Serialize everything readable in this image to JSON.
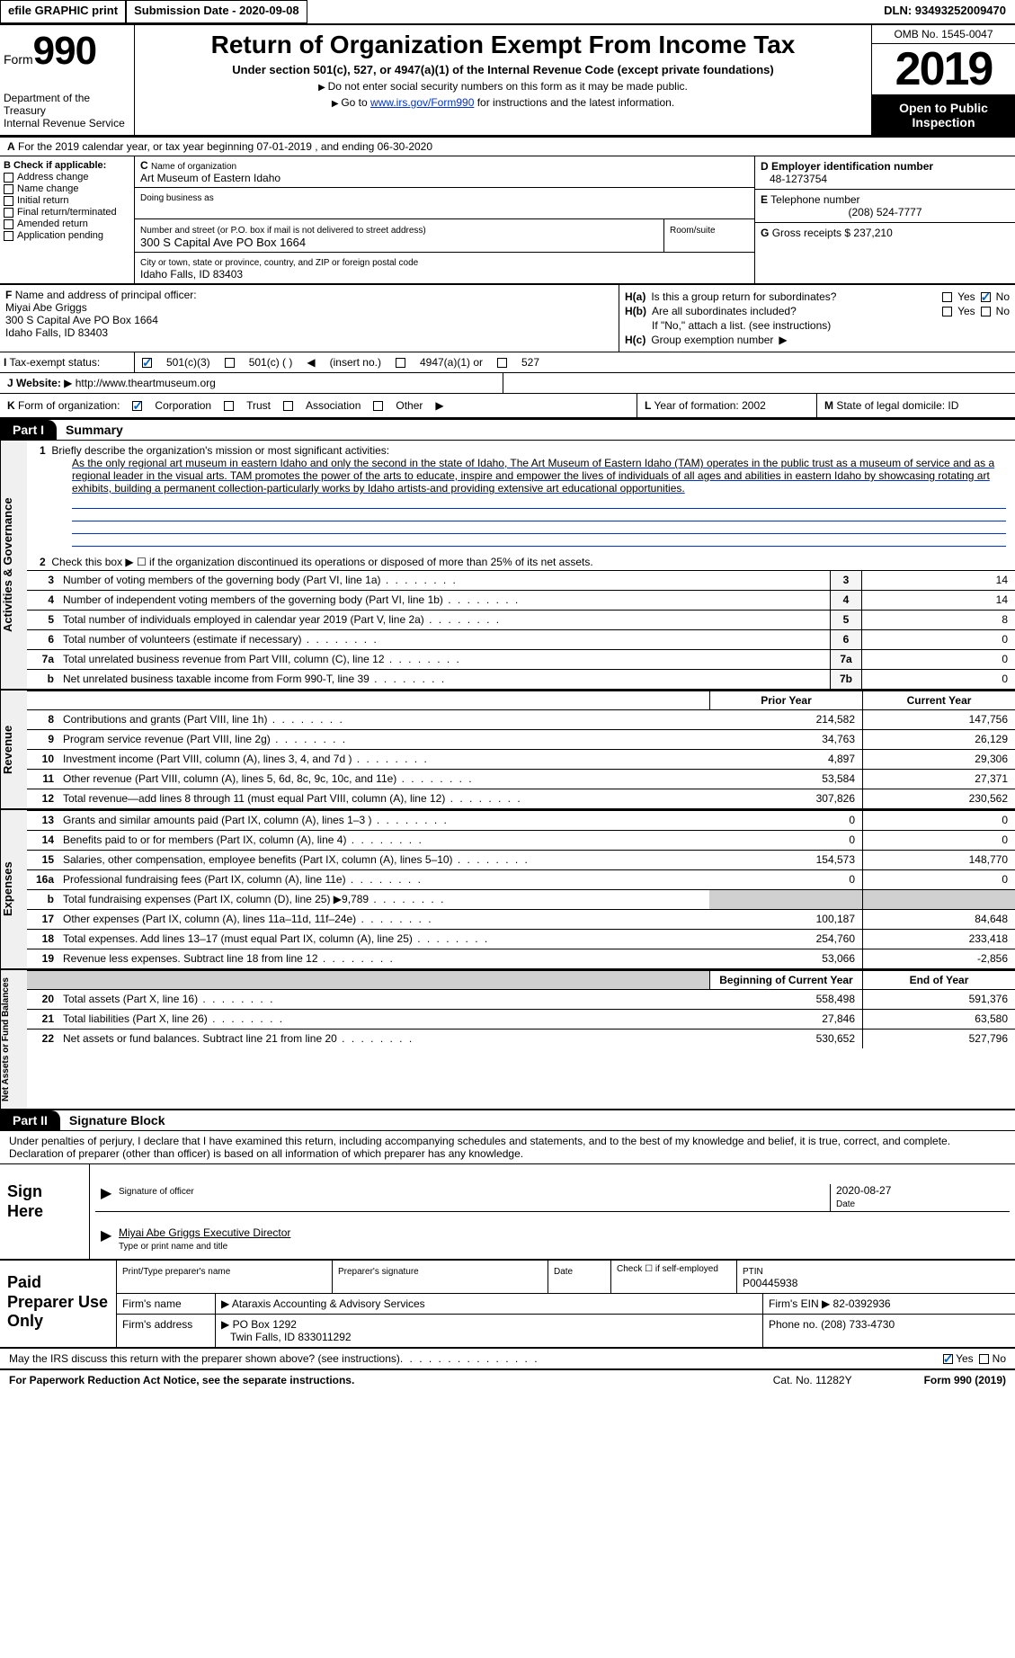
{
  "topbar": {
    "efile": "efile GRAPHIC print",
    "submission_label": "Submission Date - 2020-09-08",
    "dln": "DLN: 93493252009470"
  },
  "header": {
    "form_label": "Form",
    "form_num": "990",
    "dept": "Department of the Treasury",
    "irs": "Internal Revenue Service",
    "title": "Return of Organization Exempt From Income Tax",
    "subtitle": "Under section 501(c), 527, or 4947(a)(1) of the Internal Revenue Code (except private foundations)",
    "note1": "Do not enter social security numbers on this form as it may be made public.",
    "note2_pre": "Go to ",
    "note2_link": "www.irs.gov/Form990",
    "note2_post": " for instructions and the latest information.",
    "omb": "OMB No. 1545-0047",
    "year": "2019",
    "inspect": "Open to Public Inspection"
  },
  "rowA": "For the 2019 calendar year, or tax year beginning 07-01-2019   , and ending 06-30-2020",
  "boxB": {
    "label": "Check if applicable:",
    "items": [
      "Address change",
      "Name change",
      "Initial return",
      "Final return/terminated",
      "Amended return",
      "Application pending"
    ]
  },
  "boxC": {
    "label": "Name of organization",
    "name": "Art Museum of Eastern Idaho",
    "dba_label": "Doing business as",
    "addr_label": "Number and street (or P.O. box if mail is not delivered to street address)",
    "room_label": "Room/suite",
    "addr": "300 S Capital Ave PO Box 1664",
    "city_label": "City or town, state or province, country, and ZIP or foreign postal code",
    "city": "Idaho Falls, ID  83403"
  },
  "boxD": {
    "label": "Employer identification number",
    "val": "48-1273754"
  },
  "boxE": {
    "label": "Telephone number",
    "val": "(208) 524-7777"
  },
  "boxG": {
    "label": "Gross receipts $",
    "val": "237,210"
  },
  "boxF": {
    "label": "Name and address of principal officer:",
    "name": "Miyai Abe Griggs",
    "addr1": "300 S Capital Ave PO Box 1664",
    "addr2": "Idaho Falls, ID  83403"
  },
  "boxH": {
    "a": "Is this a group return for subordinates?",
    "b": "Are all subordinates included?",
    "note": "If \"No,\" attach a list. (see instructions)",
    "c": "Group exemption number",
    "yes": "Yes",
    "no": "No"
  },
  "rowI": {
    "label": "Tax-exempt status:",
    "opts": [
      "501(c)(3)",
      "501(c) (  )",
      "(insert no.)",
      "4947(a)(1) or",
      "527"
    ]
  },
  "rowJ": {
    "label": "Website:",
    "url": "http://www.theartmuseum.org"
  },
  "rowK": {
    "label": "Form of organization:",
    "opts": [
      "Corporation",
      "Trust",
      "Association",
      "Other"
    ],
    "year_label": "Year of formation:",
    "year": "2002",
    "state_label": "State of legal domicile:",
    "state": "ID"
  },
  "part1": {
    "badge": "Part I",
    "title": "Summary"
  },
  "summary": {
    "q1": "Briefly describe the organization's mission or most significant activities:",
    "mission": "As the only regional art museum in eastern Idaho and only the second in the state of Idaho, The Art Museum of Eastern Idaho (TAM) operates in the public trust as a museum of service and as a regional leader in the visual arts. TAM promotes the power of the arts to educate, inspire and empower the lives of individuals of all ages and abilities in eastern Idaho by showcasing rotating art exhibits, building a permanent collection-particularly works by Idaho artists-and providing extensive art educational opportunities.",
    "q2": "Check this box ▶ ☐  if the organization discontinued its operations or disposed of more than 25% of its net assets.",
    "rows": [
      {
        "n": "3",
        "d": "Number of voting members of the governing body (Part VI, line 1a)",
        "b": "3",
        "v": "14"
      },
      {
        "n": "4",
        "d": "Number of independent voting members of the governing body (Part VI, line 1b)",
        "b": "4",
        "v": "14"
      },
      {
        "n": "5",
        "d": "Total number of individuals employed in calendar year 2019 (Part V, line 2a)",
        "b": "5",
        "v": "8"
      },
      {
        "n": "6",
        "d": "Total number of volunteers (estimate if necessary)",
        "b": "6",
        "v": "0"
      },
      {
        "n": "7a",
        "d": "Total unrelated business revenue from Part VIII, column (C), line 12",
        "b": "7a",
        "v": "0"
      },
      {
        "n": "b",
        "d": "Net unrelated business taxable income from Form 990-T, line 39",
        "b": "7b",
        "v": "0"
      }
    ]
  },
  "revenue": {
    "hdr1": "Prior Year",
    "hdr2": "Current Year",
    "rows": [
      {
        "n": "8",
        "d": "Contributions and grants (Part VIII, line 1h)",
        "p": "214,582",
        "c": "147,756"
      },
      {
        "n": "9",
        "d": "Program service revenue (Part VIII, line 2g)",
        "p": "34,763",
        "c": "26,129"
      },
      {
        "n": "10",
        "d": "Investment income (Part VIII, column (A), lines 3, 4, and 7d )",
        "p": "4,897",
        "c": "29,306"
      },
      {
        "n": "11",
        "d": "Other revenue (Part VIII, column (A), lines 5, 6d, 8c, 9c, 10c, and 11e)",
        "p": "53,584",
        "c": "27,371"
      },
      {
        "n": "12",
        "d": "Total revenue—add lines 8 through 11 (must equal Part VIII, column (A), line 12)",
        "p": "307,826",
        "c": "230,562"
      }
    ]
  },
  "expenses": {
    "rows": [
      {
        "n": "13",
        "d": "Grants and similar amounts paid (Part IX, column (A), lines 1–3 )",
        "p": "0",
        "c": "0"
      },
      {
        "n": "14",
        "d": "Benefits paid to or for members (Part IX, column (A), line 4)",
        "p": "0",
        "c": "0"
      },
      {
        "n": "15",
        "d": "Salaries, other compensation, employee benefits (Part IX, column (A), lines 5–10)",
        "p": "154,573",
        "c": "148,770"
      },
      {
        "n": "16a",
        "d": "Professional fundraising fees (Part IX, column (A), line 11e)",
        "p": "0",
        "c": "0"
      },
      {
        "n": "b",
        "d": "Total fundraising expenses (Part IX, column (D), line 25) ▶9,789",
        "p": "",
        "c": "",
        "grey": true
      },
      {
        "n": "17",
        "d": "Other expenses (Part IX, column (A), lines 11a–11d, 11f–24e)",
        "p": "100,187",
        "c": "84,648"
      },
      {
        "n": "18",
        "d": "Total expenses. Add lines 13–17 (must equal Part IX, column (A), line 25)",
        "p": "254,760",
        "c": "233,418"
      },
      {
        "n": "19",
        "d": "Revenue less expenses. Subtract line 18 from line 12",
        "p": "53,066",
        "c": "-2,856"
      }
    ]
  },
  "netassets": {
    "hdr1": "Beginning of Current Year",
    "hdr2": "End of Year",
    "rows": [
      {
        "n": "20",
        "d": "Total assets (Part X, line 16)",
        "p": "558,498",
        "c": "591,376"
      },
      {
        "n": "21",
        "d": "Total liabilities (Part X, line 26)",
        "p": "27,846",
        "c": "63,580"
      },
      {
        "n": "22",
        "d": "Net assets or fund balances. Subtract line 21 from line 20",
        "p": "530,652",
        "c": "527,796"
      }
    ]
  },
  "part2": {
    "badge": "Part II",
    "title": "Signature Block"
  },
  "sig": {
    "declaration": "Under penalties of perjury, I declare that I have examined this return, including accompanying schedules and statements, and to the best of my knowledge and belief, it is true, correct, and complete. Declaration of preparer (other than officer) is based on all information of which preparer has any knowledge.",
    "sign_here": "Sign Here",
    "sig_label": "Signature of officer",
    "date": "2020-08-27",
    "date_label": "Date",
    "name": "Miyai Abe Griggs  Executive Director",
    "name_label": "Type or print name and title"
  },
  "prep": {
    "label": "Paid Preparer Use Only",
    "name_label": "Print/Type preparer's name",
    "sig_label": "Preparer's signature",
    "date_label": "Date",
    "self_label": "Check ☐  if self-employed",
    "ptin_label": "PTIN",
    "ptin": "P00445938",
    "firm_name_label": "Firm's name",
    "firm_name": "Ataraxis Accounting & Advisory Services",
    "firm_ein_label": "Firm's EIN",
    "firm_ein": "82-0392936",
    "firm_addr_label": "Firm's address",
    "firm_addr1": "PO Box 1292",
    "firm_addr2": "Twin Falls, ID  833011292",
    "phone_label": "Phone no.",
    "phone": "(208) 733-4730"
  },
  "discuss": {
    "q": "May the IRS discuss this return with the preparer shown above? (see instructions)",
    "yes": "Yes",
    "no": "No"
  },
  "footer": {
    "left": "For Paperwork Reduction Act Notice, see the separate instructions.",
    "mid": "Cat. No. 11282Y",
    "right": "Form 990 (2019)"
  },
  "vtabs": {
    "gov": "Activities & Governance",
    "rev": "Revenue",
    "exp": "Expenses",
    "net": "Net Assets or Fund Balances"
  }
}
